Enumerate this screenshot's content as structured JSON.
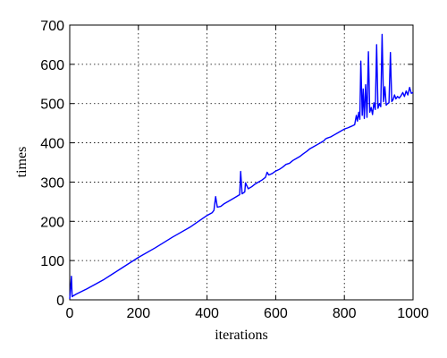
{
  "chart_data": {
    "type": "line",
    "title": "",
    "xlabel": "iterations",
    "ylabel": "times",
    "xlim": [
      0,
      1000
    ],
    "ylim": [
      0,
      700
    ],
    "xticks": [
      0,
      200,
      400,
      600,
      800,
      1000
    ],
    "yticks": [
      0,
      100,
      200,
      300,
      400,
      500,
      600,
      700
    ],
    "grid": true,
    "legend": "none",
    "series": [
      {
        "color": "#0000ff",
        "x": [
          0,
          5,
          7,
          10,
          20,
          50,
          100,
          150,
          200,
          250,
          300,
          350,
          400,
          415,
          420,
          425,
          430,
          440,
          450,
          480,
          495,
          498,
          502,
          510,
          512,
          520,
          530,
          540,
          550,
          560,
          570,
          575,
          580,
          590,
          600,
          610,
          620,
          630,
          640,
          650,
          660,
          670,
          680,
          690,
          700,
          710,
          720,
          730,
          740,
          745,
          750,
          760,
          770,
          780,
          790,
          800,
          810,
          820,
          830,
          835,
          838,
          842,
          845,
          848,
          852,
          855,
          858,
          862,
          866,
          870,
          874,
          878,
          882,
          886,
          890,
          894,
          898,
          902,
          906,
          910,
          914,
          918,
          922,
          926,
          930,
          934,
          938,
          942,
          946,
          950,
          955,
          960,
          965,
          970,
          975,
          980,
          985,
          990,
          995,
          1000
        ],
        "y": [
          2,
          60,
          8,
          10,
          15,
          28,
          52,
          80,
          108,
          133,
          160,
          185,
          215,
          222,
          228,
          263,
          236,
          238,
          245,
          260,
          268,
          327,
          270,
          275,
          298,
          283,
          288,
          295,
          300,
          305,
          312,
          325,
          318,
          322,
          328,
          332,
          338,
          345,
          348,
          355,
          360,
          365,
          372,
          378,
          385,
          390,
          395,
          400,
          405,
          410,
          412,
          415,
          420,
          425,
          430,
          435,
          438,
          442,
          446,
          470,
          455,
          478,
          460,
          608,
          470,
          537,
          462,
          548,
          465,
          632,
          478,
          490,
          472,
          502,
          485,
          650,
          488,
          500,
          492,
          676,
          505,
          543,
          496,
          500,
          502,
          630,
          505,
          510,
          522,
          512,
          518,
          514,
          520,
          528,
          518,
          532,
          522,
          541,
          526,
          528
        ]
      }
    ]
  }
}
